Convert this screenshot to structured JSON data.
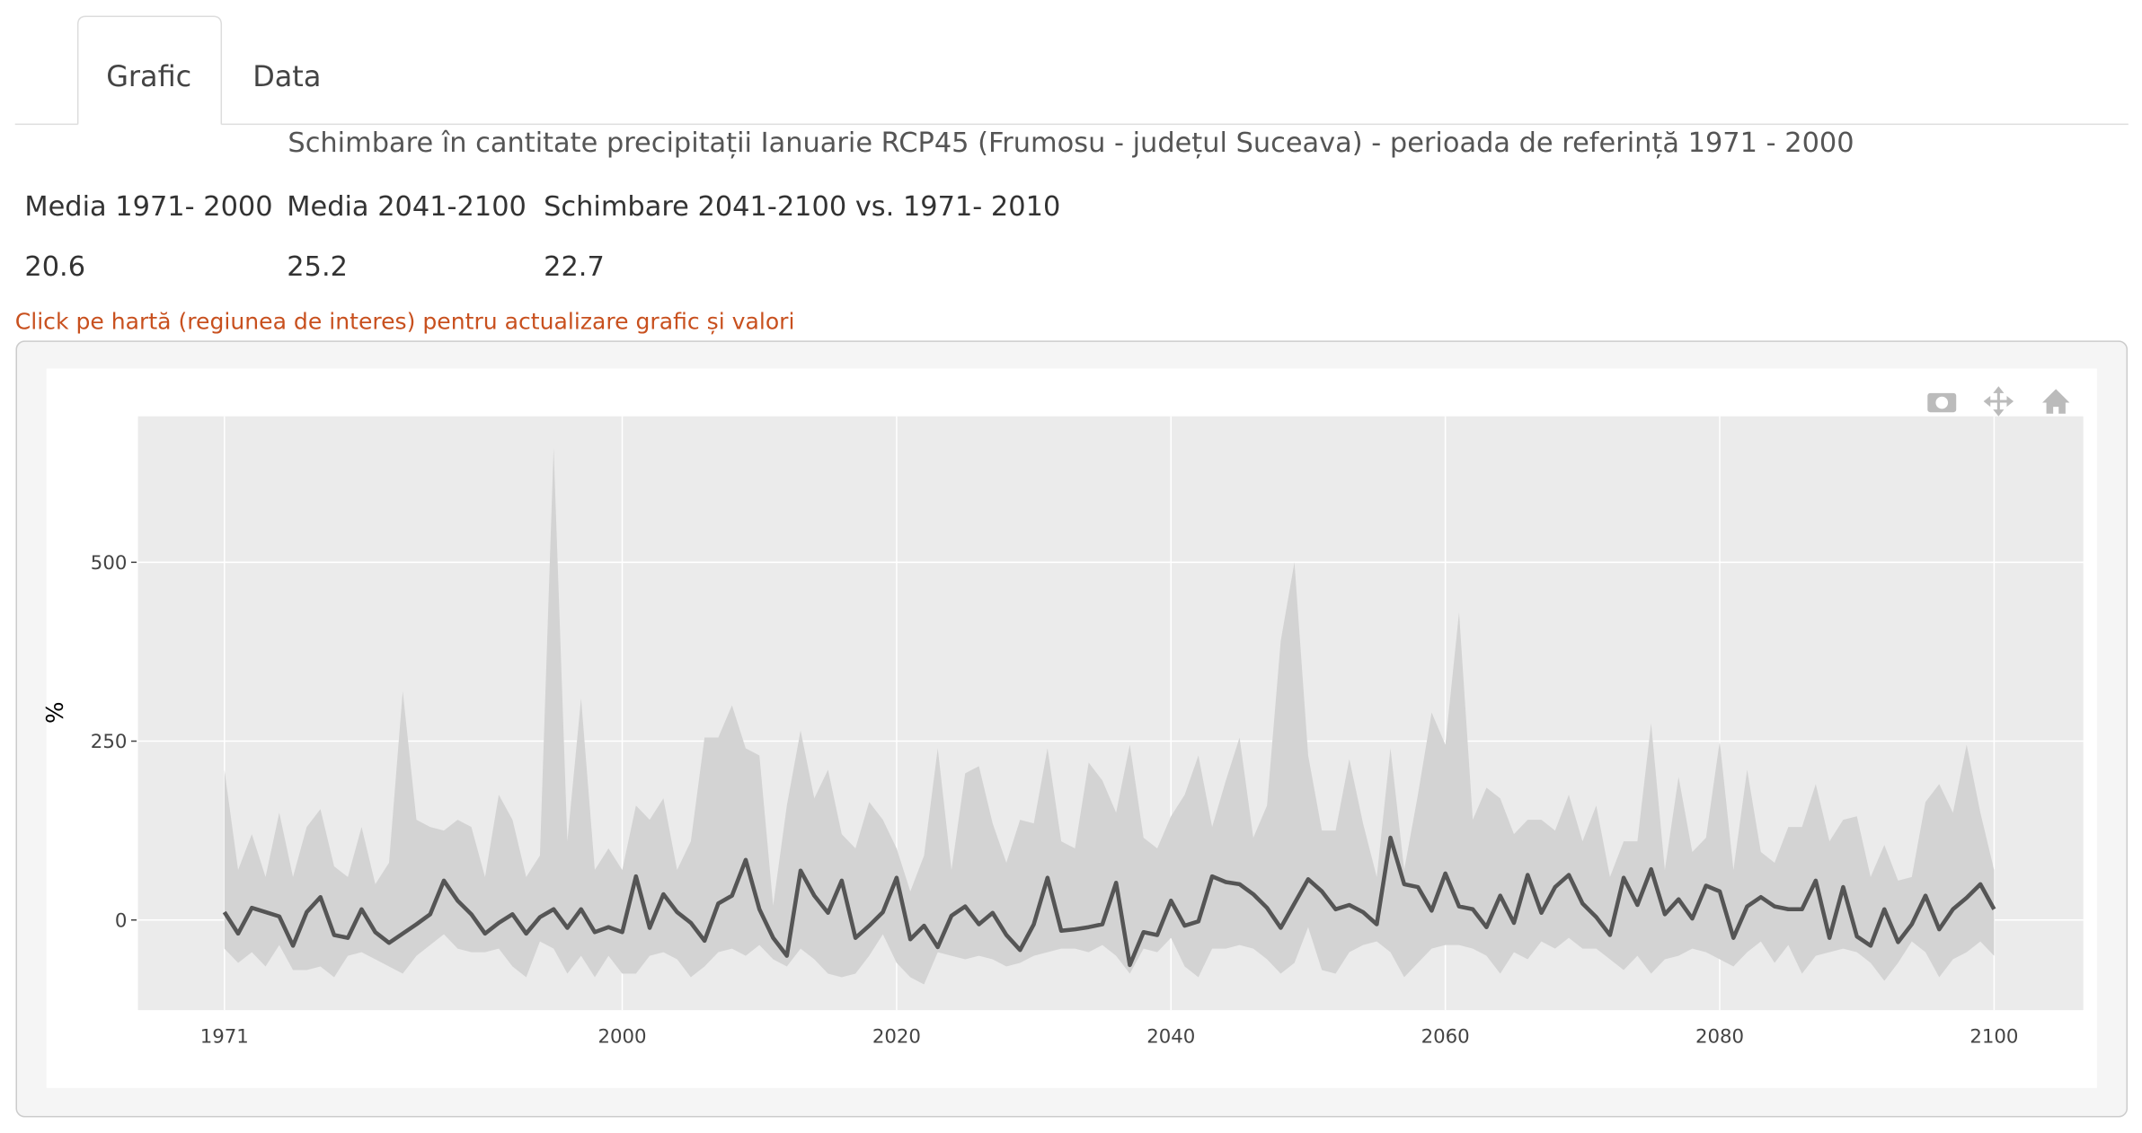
{
  "tabs": [
    "Grafic",
    "Data"
  ],
  "title": "Schimbare în cantitate precipitații Ianuarie RCP45 (Frumosu - județul Suceava) - perioada de referință 1971 - 2000",
  "table": {
    "headers": [
      "Media 1971- 2000",
      "Media 2041-2100",
      "Schimbare 2041-2100 vs. 1971- 2010"
    ],
    "values": [
      20.6,
      25.2,
      22.7
    ]
  },
  "note": "Click pe hartă (regiunea de interes) pentru actualizare grafic și valori",
  "chart_data": {
    "type": "line",
    "ylabel": "%",
    "x": [
      1971,
      1972,
      1973,
      1974,
      1975,
      1976,
      1977,
      1978,
      1979,
      1980,
      1981,
      1982,
      1983,
      1984,
      1985,
      1986,
      1987,
      1988,
      1989,
      1990,
      1991,
      1992,
      1993,
      1994,
      1995,
      1996,
      1997,
      1998,
      1999,
      2000,
      2001,
      2002,
      2003,
      2004,
      2005,
      2006,
      2007,
      2008,
      2009,
      2010,
      2011,
      2012,
      2013,
      2014,
      2015,
      2016,
      2017,
      2018,
      2019,
      2020,
      2021,
      2022,
      2023,
      2024,
      2025,
      2026,
      2027,
      2028,
      2029,
      2030,
      2031,
      2032,
      2033,
      2034,
      2035,
      2036,
      2037,
      2038,
      2039,
      2040,
      2041,
      2042,
      2043,
      2044,
      2045,
      2046,
      2047,
      2048,
      2049,
      2050,
      2051,
      2052,
      2053,
      2054,
      2055,
      2056,
      2057,
      2058,
      2059,
      2060,
      2061,
      2062,
      2063,
      2064,
      2065,
      2066,
      2067,
      2068,
      2069,
      2070,
      2071,
      2072,
      2073,
      2074,
      2075,
      2076,
      2077,
      2078,
      2079,
      2080,
      2081,
      2082,
      2083,
      2084,
      2085,
      2086,
      2087,
      2088,
      2089,
      2090,
      2091,
      2092,
      2093,
      2094,
      2095,
      2096,
      2097,
      2098,
      2099,
      2100
    ],
    "series": [
      {
        "color": "#555555",
        "values": [
          11,
          -19,
          17,
          11,
          5,
          -36,
          11,
          32,
          -21,
          -25,
          15,
          -17,
          -32,
          -19,
          -6,
          8,
          55,
          27,
          8,
          -19,
          -4,
          8,
          -19,
          4,
          15,
          -11,
          15,
          -17,
          -10,
          -17,
          61,
          -11,
          36,
          11,
          -4,
          -29,
          23,
          34,
          84,
          15,
          -25,
          -50,
          69,
          34,
          10,
          55,
          -25,
          -8,
          11,
          59,
          -27,
          -8,
          -38,
          6,
          19,
          -6,
          10,
          -21,
          -42,
          -6,
          59,
          -15,
          -13,
          -10,
          -6,
          52,
          -63,
          -17,
          -21,
          27,
          -8,
          -2,
          61,
          53,
          50,
          36,
          17,
          -11,
          23,
          57,
          40,
          15,
          21,
          11,
          -6,
          115,
          50,
          46,
          13,
          65,
          19,
          15,
          -10,
          34,
          -4,
          63,
          10,
          46,
          63,
          23,
          4,
          -21,
          59,
          21,
          71,
          8,
          29,
          2,
          48,
          40,
          -25,
          19,
          32,
          19,
          15,
          15,
          55,
          -25,
          46,
          -23,
          -36,
          15,
          -31,
          -6,
          34,
          -13,
          15,
          31,
          50,
          15
        ]
      }
    ],
    "band": {
      "color": "#d3d3d3",
      "upper": [
        210,
        70,
        120,
        60,
        150,
        60,
        130,
        155,
        75,
        60,
        130,
        50,
        80,
        320,
        140,
        130,
        125,
        140,
        130,
        60,
        175,
        140,
        60,
        90,
        660,
        110,
        310,
        70,
        100,
        70,
        160,
        140,
        170,
        70,
        110,
        255,
        255,
        300,
        240,
        230,
        20,
        160,
        265,
        170,
        210,
        120,
        100,
        165,
        140,
        100,
        40,
        90,
        240,
        70,
        205,
        215,
        135,
        80,
        140,
        135,
        240,
        110,
        100,
        220,
        195,
        150,
        245,
        115,
        100,
        145,
        175,
        230,
        130,
        195,
        255,
        115,
        160,
        390,
        500,
        230,
        125,
        125,
        225,
        135,
        60,
        240,
        70,
        175,
        290,
        245,
        430,
        140,
        185,
        170,
        120,
        140,
        140,
        125,
        175,
        110,
        160,
        60,
        110,
        110,
        275,
        70,
        200,
        95,
        115,
        250,
        70,
        210,
        95,
        80,
        130,
        130,
        190,
        110,
        140,
        145,
        60,
        105,
        55,
        60,
        165,
        190,
        150,
        245,
        150,
        70
      ],
      "lower": [
        -40,
        -60,
        -45,
        -65,
        -35,
        -70,
        -70,
        -65,
        -80,
        -50,
        -45,
        -55,
        -65,
        -75,
        -50,
        -35,
        -20,
        -40,
        -45,
        -45,
        -40,
        -65,
        -80,
        -30,
        -40,
        -75,
        -50,
        -80,
        -50,
        -75,
        -75,
        -50,
        -45,
        -55,
        -80,
        -65,
        -45,
        -40,
        -50,
        -35,
        -55,
        -65,
        -40,
        -55,
        -75,
        -80,
        -75,
        -50,
        -20,
        -60,
        -80,
        -90,
        -45,
        -50,
        -55,
        -50,
        -55,
        -65,
        -60,
        -50,
        -45,
        -40,
        -40,
        -45,
        -35,
        -50,
        -75,
        -40,
        -45,
        -25,
        -65,
        -80,
        -40,
        -40,
        -35,
        -40,
        -55,
        -75,
        -60,
        -10,
        -70,
        -75,
        -45,
        -35,
        -30,
        -45,
        -80,
        -60,
        -40,
        -35,
        -35,
        -40,
        -50,
        -75,
        -45,
        -55,
        -30,
        -40,
        -25,
        -40,
        -40,
        -55,
        -70,
        -50,
        -75,
        -55,
        -50,
        -40,
        -45,
        -55,
        -65,
        -45,
        -30,
        -60,
        -35,
        -75,
        -50,
        -45,
        -40,
        -45,
        -60,
        -85,
        -60,
        -30,
        -45,
        -80,
        -55,
        -45,
        -30,
        -50
      ]
    },
    "xlim": [
      1964.7,
      2106.5
    ],
    "ylim": [
      -126,
      704
    ],
    "xticks": [
      1971,
      2000,
      2020,
      2040,
      2060,
      2080,
      2100
    ],
    "yticks": [
      0,
      250,
      500
    ],
    "grid": true
  }
}
